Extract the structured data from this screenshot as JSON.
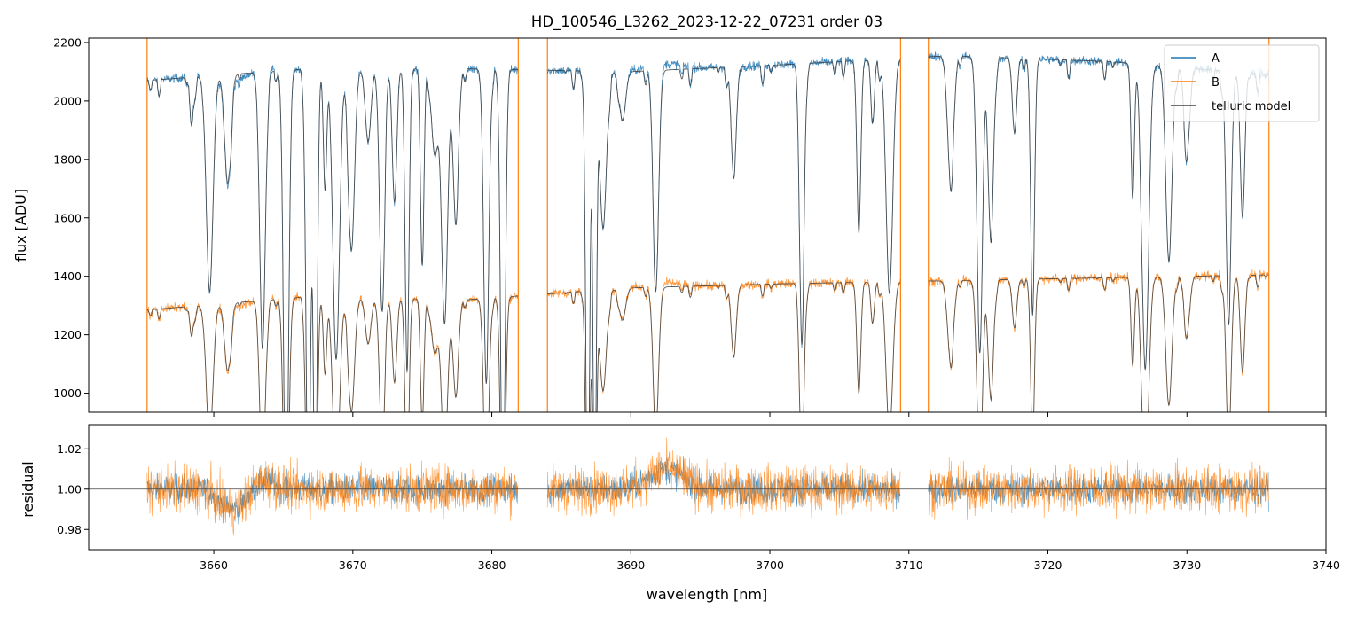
{
  "chart_data": [
    {
      "type": "line",
      "title": "HD_100546_L3262_2023-12-22_07231  order 03",
      "xlabel": "",
      "ylabel": "flux [ADU]",
      "xlim": [
        3651,
        3740
      ],
      "ylim": [
        935,
        2215
      ],
      "yticks": [
        1000,
        1200,
        1400,
        1600,
        1800,
        2000,
        2200
      ],
      "ytick_labels": [
        "1000",
        "1200",
        "1400",
        "1600",
        "1800",
        "2000",
        "2200"
      ],
      "segments_nm": [
        [
          3655.2,
          3681.9
        ],
        [
          3684.0,
          3709.4
        ],
        [
          3711.4,
          3735.9
        ]
      ],
      "absorption_lines_nm": [
        3658.4,
        3659.7,
        3661.0,
        3663.5,
        3665.2,
        3666.8,
        3667.3,
        3668.0,
        3668.8,
        3669.9,
        3671.1,
        3672.1,
        3673.0,
        3673.9,
        3675.0,
        3675.9,
        3676.6,
        3677.4,
        3679.6,
        3680.8,
        3686.9,
        3687.4,
        3688.0,
        3689.4,
        3691.8,
        3697.4,
        3702.3,
        3706.4,
        3707.4,
        3708.6,
        3713.0,
        3715.1,
        3715.9,
        3717.6,
        3718.9,
        3726.1,
        3727.0,
        3728.7,
        3730.0,
        3733.0,
        3734.0
      ],
      "series": [
        {
          "name": "A",
          "continuum_adu": [
            2070,
            2110,
            2110,
            2100,
            2125,
            2155,
            2135,
            2090
          ],
          "color": "#1f77b4"
        },
        {
          "name": "B",
          "continuum_adu": [
            1285,
            1330,
            1320,
            1360,
            1375,
            1385,
            1395,
            1405
          ],
          "color": "#ff7f0e"
        },
        {
          "name": "telluric model",
          "color": "#404040"
        }
      ],
      "legend_position": "top-right"
    },
    {
      "type": "line",
      "title": "",
      "xlabel": "wavelength [nm]",
      "ylabel": "residual",
      "xlim": [
        3651,
        3740
      ],
      "ylim": [
        0.97,
        1.032
      ],
      "xticks": [
        3660,
        3670,
        3680,
        3690,
        3700,
        3710,
        3720,
        3730,
        3740
      ],
      "xtick_labels": [
        "3660",
        "3670",
        "3680",
        "3690",
        "3700",
        "3710",
        "3720",
        "3730",
        "3740"
      ],
      "yticks": [
        0.98,
        1.0,
        1.02
      ],
      "ytick_labels": [
        "0.98",
        "1.00",
        "1.02"
      ],
      "reference_line": 1.0,
      "series": [
        {
          "name": "A",
          "color": "#1f77b4"
        },
        {
          "name": "B",
          "color": "#ff7f0e"
        }
      ]
    }
  ],
  "legend": {
    "items": [
      "A",
      "B",
      "telluric model"
    ]
  }
}
